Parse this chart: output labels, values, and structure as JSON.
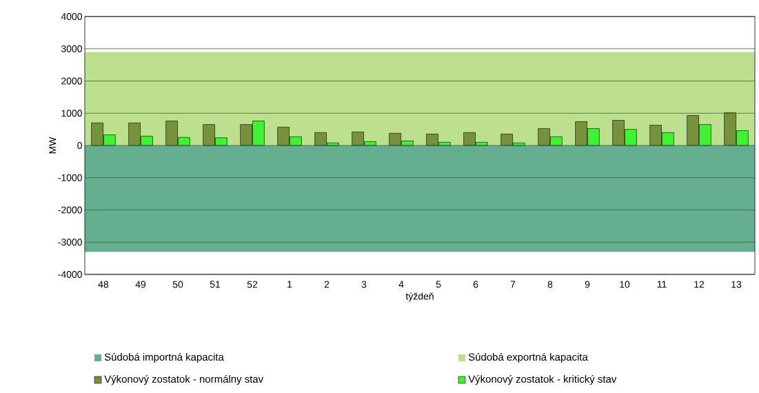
{
  "chart_data": {
    "type": "bar",
    "xlabel": "týždeň",
    "ylabel": "MW",
    "categories": [
      "48",
      "49",
      "50",
      "51",
      "52",
      "1",
      "2",
      "3",
      "4",
      "5",
      "6",
      "7",
      "8",
      "9",
      "10",
      "11",
      "12",
      "13"
    ],
    "bands": [
      {
        "axis": "y",
        "from": -3300,
        "to": 0,
        "label": "Súdobá importná kapacita",
        "color": "#66ae90"
      },
      {
        "axis": "y",
        "from": 0,
        "to": 2900,
        "label": "Súdobá exportná kapacita",
        "color": "#bce08e"
      }
    ],
    "series": [
      {
        "name": "Výkonový zostatok - normálny stav",
        "color": "#77923c",
        "values": [
          700,
          700,
          760,
          650,
          650,
          570,
          400,
          420,
          380,
          355,
          400,
          355,
          525,
          740,
          780,
          630,
          930,
          1015
        ]
      },
      {
        "name": "Výkonový zostatok - kritický stav",
        "color": "#40f233",
        "values": [
          330,
          290,
          250,
          240,
          760,
          270,
          80,
          120,
          140,
          100,
          100,
          80,
          270,
          525,
          500,
          400,
          650,
          460
        ]
      }
    ],
    "ylim": [
      -4000,
      4000
    ],
    "yticks": [
      -4000,
      -3000,
      -2000,
      -1000,
      0,
      1000,
      2000,
      3000,
      4000
    ],
    "grid": "y",
    "legend": "bottom"
  }
}
